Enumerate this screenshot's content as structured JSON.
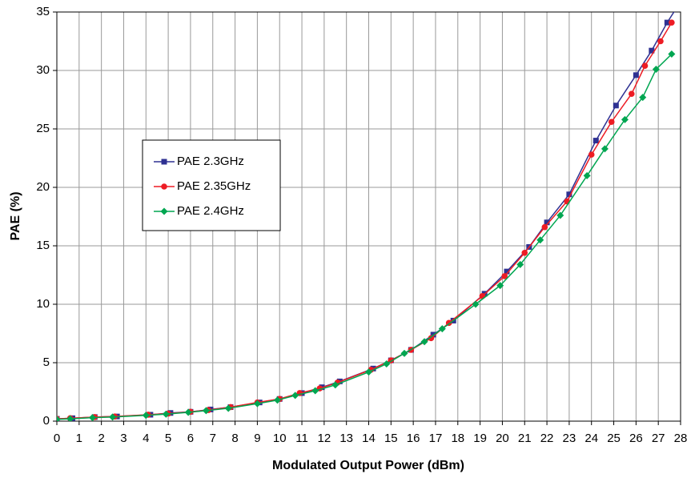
{
  "chart_data": {
    "type": "line",
    "x_label": "Modulated Output Power (dBm)",
    "y_label": "PAE (%)",
    "xlim": [
      0,
      28
    ],
    "ylim": [
      0,
      35
    ],
    "xticks": [
      0,
      1,
      2,
      3,
      4,
      5,
      6,
      7,
      8,
      9,
      10,
      11,
      12,
      13,
      14,
      15,
      16,
      17,
      18,
      19,
      20,
      21,
      22,
      23,
      24,
      25,
      26,
      27,
      28
    ],
    "yticks": [
      0,
      5,
      10,
      15,
      20,
      25,
      30,
      35
    ],
    "grid": true,
    "legend": "center-left",
    "series": [
      {
        "name": "PAE 2.3GHz",
        "color": "#2e3192",
        "marker": "square",
        "x": [
          0,
          0.7,
          1.7,
          2.7,
          4.2,
          5.1,
          6.0,
          6.9,
          7.8,
          9.1,
          10.0,
          11.0,
          11.9,
          12.7,
          14.2,
          15.0,
          15.9,
          16.9,
          17.8,
          19.2,
          20.2,
          21.2,
          22.0,
          23.0,
          24.2,
          25.1,
          26.0,
          26.7,
          27.4,
          27.8
        ],
        "values": [
          0.2,
          0.25,
          0.35,
          0.4,
          0.55,
          0.7,
          0.8,
          1.0,
          1.2,
          1.6,
          1.9,
          2.4,
          2.9,
          3.4,
          4.5,
          5.2,
          6.1,
          7.4,
          8.6,
          10.9,
          12.8,
          14.9,
          17.0,
          19.4,
          24.0,
          27.0,
          29.6,
          31.7,
          34.1,
          35.3
        ]
      },
      {
        "name": "PAE 2.35GHz",
        "color": "#ed1c24",
        "marker": "circle",
        "x": [
          0,
          0.6,
          1.7,
          2.6,
          4.1,
          5.0,
          6.0,
          6.8,
          7.8,
          9.0,
          10.0,
          10.9,
          11.8,
          12.6,
          14.1,
          15.0,
          15.9,
          16.8,
          17.6,
          19.1,
          20.1,
          21.0,
          21.9,
          22.9,
          24.0,
          24.9,
          25.8,
          26.4,
          27.1,
          27.6
        ],
        "values": [
          0.2,
          0.25,
          0.35,
          0.4,
          0.55,
          0.65,
          0.8,
          0.95,
          1.2,
          1.6,
          1.9,
          2.4,
          2.8,
          3.3,
          4.4,
          5.2,
          6.1,
          7.1,
          8.4,
          10.7,
          12.4,
          14.4,
          16.6,
          18.8,
          22.8,
          25.6,
          28.0,
          30.4,
          32.5,
          34.1
        ]
      },
      {
        "name": "PAE 2.4GHz",
        "color": "#00a651",
        "marker": "diamond",
        "x": [
          0,
          0.6,
          1.6,
          2.5,
          4.0,
          4.9,
          5.9,
          6.7,
          7.7,
          9.0,
          9.9,
          10.7,
          11.6,
          12.5,
          14.0,
          14.8,
          15.6,
          16.5,
          17.3,
          18.8,
          19.9,
          20.8,
          21.7,
          22.6,
          23.8,
          24.6,
          25.5,
          26.3,
          26.9,
          27.6
        ],
        "values": [
          0.15,
          0.2,
          0.3,
          0.35,
          0.5,
          0.6,
          0.75,
          0.9,
          1.1,
          1.5,
          1.8,
          2.2,
          2.6,
          3.1,
          4.2,
          4.9,
          5.8,
          6.8,
          7.9,
          10.0,
          11.6,
          13.4,
          15.5,
          17.6,
          21.0,
          23.3,
          25.8,
          27.7,
          30.1,
          31.4
        ]
      }
    ]
  }
}
